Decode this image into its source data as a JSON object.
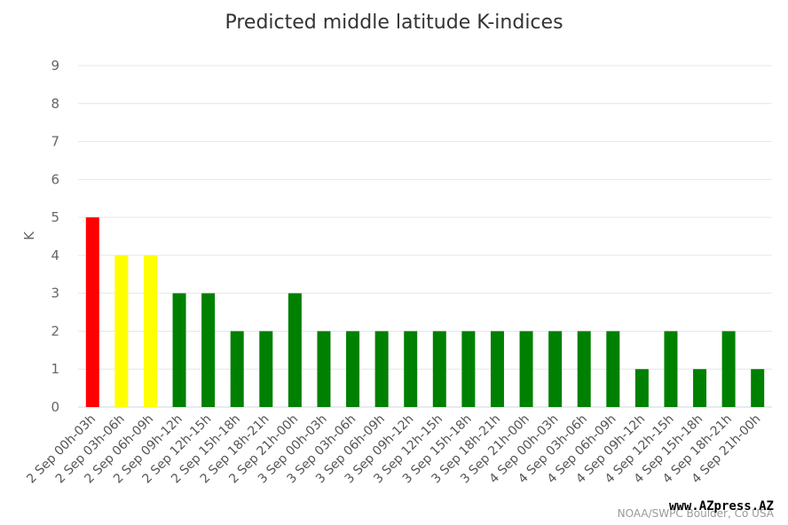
{
  "chart_data": {
    "type": "bar",
    "title": "Predicted middle latitude K-indices",
    "xlabel": "",
    "ylabel": "K",
    "ylim": [
      0,
      9
    ],
    "yticks": [
      "0",
      "1",
      "2",
      "3",
      "4",
      "5",
      "6",
      "7",
      "8",
      "9"
    ],
    "grid": true,
    "categories": [
      "2 Sep 00h-03h",
      "2 Sep 03h-06h",
      "2 Sep 06h-09h",
      "2 Sep 09h-12h",
      "2 Sep 12h-15h",
      "2 Sep 15h-18h",
      "2 Sep 18h-21h",
      "2 Sep 21h-00h",
      "3 Sep 00h-03h",
      "3 Sep 03h-06h",
      "3 Sep 06h-09h",
      "3 Sep 09h-12h",
      "3 Sep 12h-15h",
      "3 Sep 15h-18h",
      "3 Sep 18h-21h",
      "3 Sep 21h-00h",
      "4 Sep 00h-03h",
      "4 Sep 03h-06h",
      "4 Sep 06h-09h",
      "4 Sep 09h-12h",
      "4 Sep 12h-15h",
      "4 Sep 15h-18h",
      "4 Sep 18h-21h",
      "4 Sep 21h-00h"
    ],
    "values": [
      5,
      4,
      4,
      3,
      3,
      2,
      2,
      3,
      2,
      2,
      2,
      2,
      2,
      2,
      2,
      2,
      2,
      2,
      2,
      1,
      2,
      1,
      2,
      1
    ],
    "colors": {
      "k5_and_above": "#ff0000",
      "k4": "#ffff00",
      "below_k4": "#008000"
    },
    "credit": "NOAA/SWPC Boulder, Co USA"
  },
  "watermark": "www.AZpress.AZ",
  "style": {
    "grid_color": "#e6e6e6",
    "axis_line_color": "#ccd6eb"
  }
}
